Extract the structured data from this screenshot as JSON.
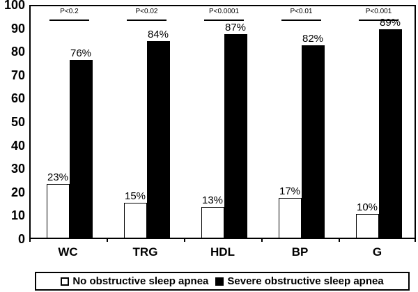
{
  "chart_data": {
    "type": "bar",
    "categories": [
      "WC",
      "TRG",
      "HDL",
      "BP",
      "G"
    ],
    "series": [
      {
        "name": "No obstructive sleep apnea",
        "color": "#ffffff",
        "values": [
          23,
          15,
          13,
          17,
          10
        ]
      },
      {
        "name": "Severe obstructive sleep apnea",
        "color": "#000000",
        "values": [
          76,
          84,
          87,
          82,
          89
        ]
      }
    ],
    "value_label_suffix": "%",
    "p_values": [
      "P<0.2",
      "P<0.02",
      "P<0.0001",
      "P<0.01",
      "P<0.001"
    ],
    "title": "",
    "xlabel": "",
    "ylabel": "",
    "ylim": [
      0,
      100
    ],
    "y_ticks": [
      0,
      10,
      20,
      30,
      40,
      50,
      60,
      70,
      80,
      90,
      100
    ],
    "grid": false,
    "legend_position": "bottom",
    "axis_color": "#000000",
    "background_color": "#ffffff"
  }
}
